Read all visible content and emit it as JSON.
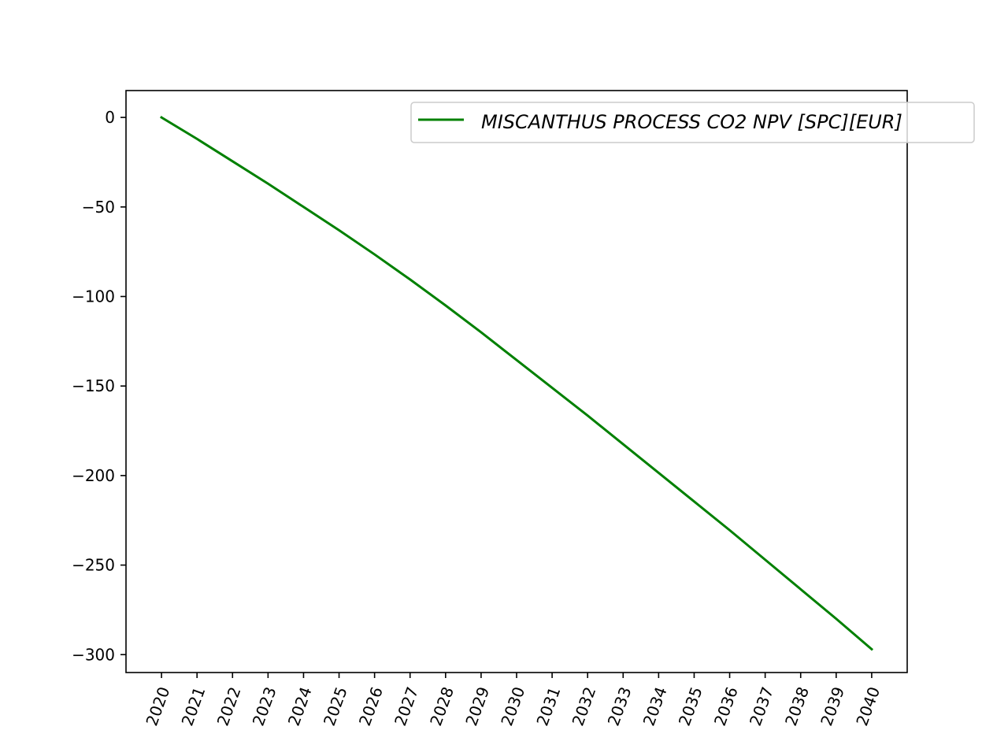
{
  "chart_data": {
    "type": "line",
    "title": "",
    "xlabel": "",
    "ylabel": "",
    "x": [
      2020,
      2021,
      2022,
      2023,
      2024,
      2025,
      2026,
      2027,
      2028,
      2029,
      2030,
      2031,
      2032,
      2033,
      2034,
      2035,
      2036,
      2037,
      2038,
      2039,
      2040
    ],
    "x_tick_labels": [
      "2020",
      "2021",
      "2022",
      "2023",
      "2024",
      "2025",
      "2026",
      "2027",
      "2028",
      "2029",
      "2030",
      "2031",
      "2032",
      "2033",
      "2034",
      "2035",
      "2036",
      "2037",
      "2038",
      "2039",
      "2040"
    ],
    "y_ticks": [
      0,
      -50,
      -100,
      -150,
      -200,
      -250,
      -300
    ],
    "y_tick_labels": [
      "0",
      "−50",
      "−100",
      "−150",
      "−200",
      "−250",
      "−300"
    ],
    "xlim": [
      2019,
      2041
    ],
    "ylim": [
      -310,
      15
    ],
    "grid": false,
    "legend_position": "top-right",
    "series": [
      {
        "name": "MISCANTHUS PROCESS CO2 NPV [SPC][EUR]",
        "color": "#008000",
        "values": [
          0,
          -12,
          -24.5,
          -37,
          -50,
          -63,
          -76.5,
          -90.5,
          -105,
          -120,
          -135.5,
          -151,
          -166.5,
          -182.5,
          -198.5,
          -214.5,
          -230.5,
          -247,
          -263.5,
          -280,
          -297
        ]
      }
    ]
  }
}
